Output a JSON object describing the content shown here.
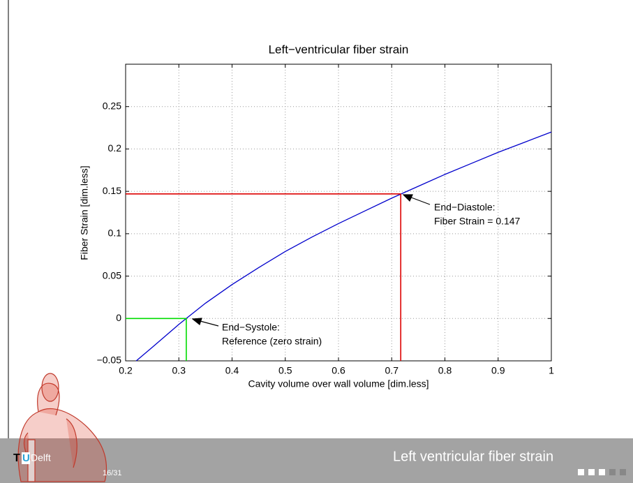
{
  "chart_data": {
    "type": "line",
    "title": "Left−ventricular fiber strain",
    "xlabel": "Cavity volume over wall volume [dim.less]",
    "ylabel": "Fiber Strain [dim.less]",
    "x": [
      0.22,
      0.25,
      0.3,
      0.35,
      0.4,
      0.45,
      0.5,
      0.55,
      0.6,
      0.65,
      0.7,
      0.75,
      0.8,
      0.85,
      0.9,
      0.95,
      1
    ],
    "series": [
      {
        "color": "#0000cc",
        "values": [
          -0.05,
          -0.034,
          -0.007,
          0.018,
          0.04,
          0.06,
          0.079,
          0.096,
          0.112,
          0.127,
          0.142,
          0.156,
          0.17,
          0.183,
          0.196,
          0.208,
          0.22
        ]
      }
    ],
    "xlim": [
      0.2,
      1
    ],
    "ylim": [
      -0.05,
      0.3
    ],
    "xticks": [
      0.2,
      0.3,
      0.4,
      0.5,
      0.6,
      0.7,
      0.8,
      0.9,
      1
    ],
    "yticks": [
      {
        "value": -0.05,
        "label": "−0.05"
      },
      0,
      0.05,
      0.1,
      0.15,
      0.2,
      0.25
    ],
    "grid": true,
    "markers": [
      {
        "x": 0.314,
        "y": 0,
        "color": "#00dd00",
        "text": [
          "End−Systole:",
          "Reference (zero strain)"
        ]
      },
      {
        "x": 0.717,
        "y": 0.147,
        "color": "#dd0000",
        "text": [
          "End−Diastole:",
          "Fiber Strain = 0.147"
        ]
      }
    ]
  },
  "footer": {
    "logo": [
      "T",
      "U",
      "Delft"
    ],
    "page": "16/31",
    "title": "Left ventricular fiber strain"
  }
}
